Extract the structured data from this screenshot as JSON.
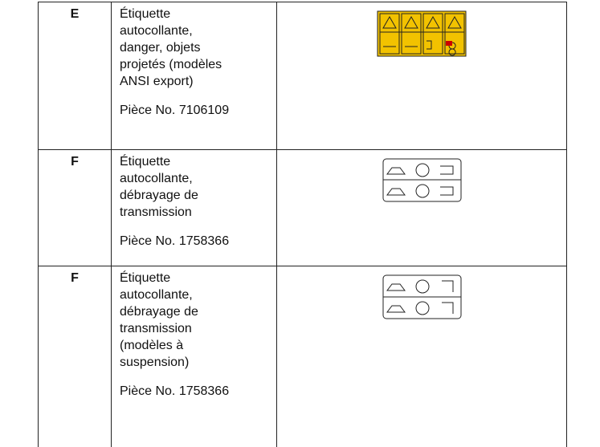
{
  "table": {
    "rows": [
      {
        "letter": "E",
        "description": [
          "Étiquette",
          "autocollante,",
          "danger, objets",
          "projetés (modèles",
          "ANSI export)"
        ],
        "part": "Pièce No. 7106109"
      },
      {
        "letter": "F",
        "description": [
          "Étiquette",
          "autocollante,",
          "débrayage de",
          "transmission"
        ],
        "part": "Pièce No. 1758366"
      },
      {
        "letter": "F",
        "description": [
          "Étiquette",
          "autocollante,",
          "débrayage de",
          "transmission",
          "(modèles à",
          "suspension)"
        ],
        "part": "Pièce No. 1758366"
      }
    ]
  }
}
